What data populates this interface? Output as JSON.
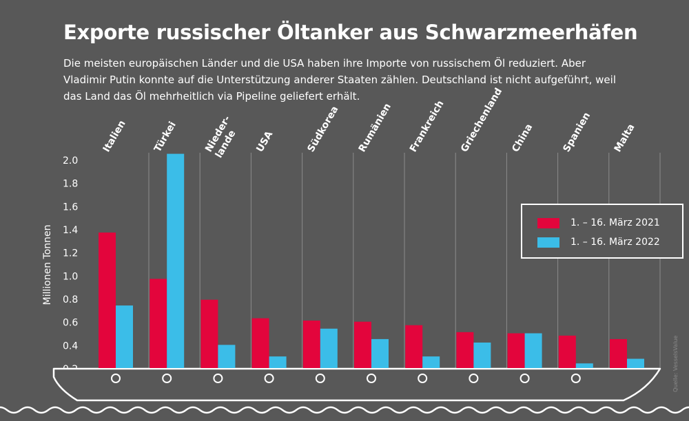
{
  "title": "Exporte russischer Öltanker aus Schwarzmeerhäfen",
  "subtitle": "Die meisten europäischen Länder und die USA haben ihre Importe von russischem Öl reduziert. Aber Vladimir Putin konnte auf die Unterstützung anderer Staaten zählen. Deutschland ist nicht aufgeführt, weil das Land das Öl mehrheitlich via Pipeline geliefert erhält.",
  "source": "Quelle: VesselsValue",
  "colors": {
    "background": "#585858",
    "series_2021": "#e3053c",
    "series_2022": "#3bbde8",
    "text": "#ffffff",
    "grid": "#8c8c8c"
  },
  "chart_data": {
    "type": "bar",
    "categories": [
      "Italien",
      "Türkei",
      "Nieder-\nlande",
      "USA",
      "Südkorea",
      "Rumänien",
      "Frankreich",
      "Griechenland",
      "China",
      "Spanien",
      "Malta"
    ],
    "series": [
      {
        "name": "1. – 16. März 2021",
        "color": "#e3053c",
        "values": [
          1.37,
          0.97,
          0.79,
          0.63,
          0.61,
          0.6,
          0.57,
          0.51,
          0.5,
          0.48,
          0.45
        ]
      },
      {
        "name": "1. – 16. März 2022",
        "color": "#3bbde8",
        "values": [
          0.74,
          2.05,
          0.4,
          0.3,
          0.54,
          0.45,
          0.3,
          0.42,
          0.5,
          0.24,
          0.28
        ]
      }
    ],
    "xlabel": "",
    "ylabel": "Millionen Tonnen",
    "ylim": [
      0.2,
      2.0
    ],
    "yticks": [
      "0.2",
      "0.4",
      "0.6",
      "0.8",
      "1.0",
      "1.2",
      "1.4",
      "1.6",
      "1.8",
      "2.0"
    ],
    "grid": "vertical",
    "legend": "right"
  }
}
